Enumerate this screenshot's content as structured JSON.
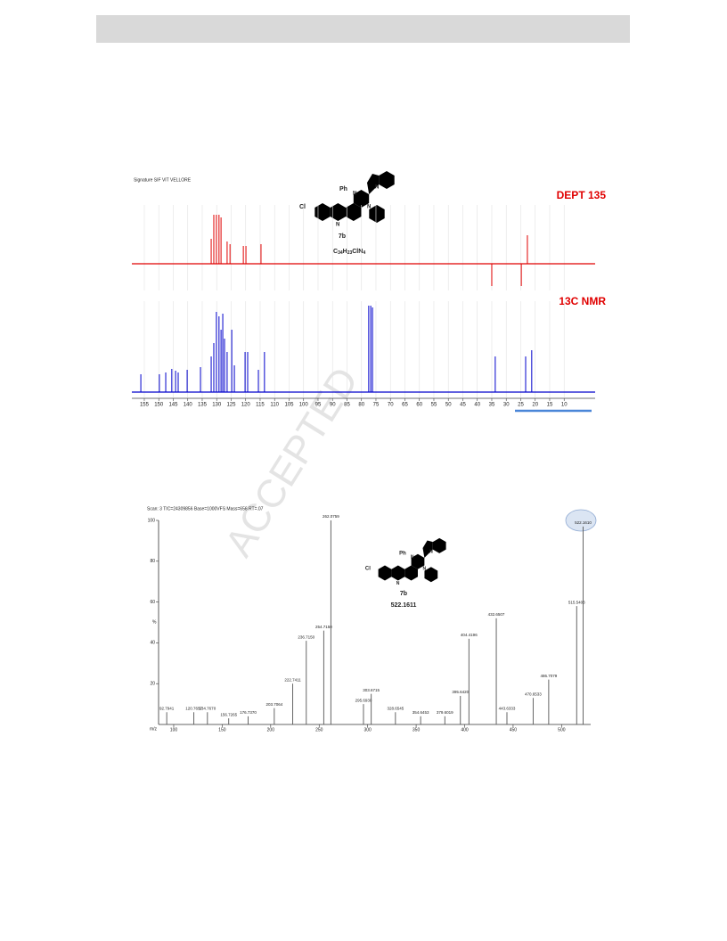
{
  "watermark": "ACCEPTED",
  "nmr_header": "Signature SIF VIT VELLORE",
  "structure": {
    "cl": "Cl",
    "ph": "Ph",
    "n": "N"
  },
  "nmr_compound": {
    "label": "7b",
    "formula": [
      "C",
      "34",
      "H",
      "23",
      "ClN",
      "4"
    ]
  },
  "ms_compound": {
    "label": "7b",
    "mass": "522.1611"
  },
  "chart_data": [
    {
      "type": "spectrum",
      "title": "DEPT 135",
      "color": "#e00000",
      "x": [
        131.9,
        131.0,
        130.1,
        129.2,
        128.5,
        126.4,
        125.4,
        120.8,
        119.9,
        114.7,
        35.0,
        24.8,
        22.7
      ],
      "values": [
        28,
        55,
        55,
        55,
        52,
        25,
        22,
        20,
        20,
        22,
        -25,
        -25,
        32
      ],
      "xlim": [
        159.3,
        -0.7
      ],
      "ylim": [
        -30,
        66
      ],
      "grid": true
    },
    {
      "type": "spectrum",
      "title": "13C NMR",
      "color": "#0000cc",
      "x": [
        156.2,
        149.8,
        147.6,
        145.5,
        144.2,
        143.3,
        140.2,
        135.6,
        131.9,
        131.0,
        130.1,
        129.2,
        128.5,
        127.9,
        127.3,
        126.4,
        124.8,
        123.9,
        120.2,
        119.3,
        115.6,
        113.5,
        77.5,
        76.8,
        76.2,
        33.8,
        23.3,
        21.2
      ],
      "values": [
        20,
        20,
        22,
        26,
        24,
        22,
        25,
        28,
        40,
        55,
        90,
        85,
        70,
        88,
        60,
        45,
        70,
        30,
        45,
        45,
        25,
        45,
        97,
        97,
        95,
        40,
        40,
        47
      ],
      "xlim": [
        159.3,
        -0.7
      ],
      "ylim": [
        -6,
        102
      ],
      "xticks": [
        155,
        150,
        145,
        140,
        135,
        130,
        125,
        120,
        115,
        110,
        105,
        100,
        95,
        90,
        85,
        80,
        75,
        70,
        65,
        60,
        55,
        50,
        45,
        40,
        35,
        30,
        25,
        20,
        15,
        10
      ],
      "grid": true
    },
    {
      "type": "stem",
      "subtitle": "Scan: 3   TIC=24309856   Base=1000VFS   Mass=656   RT=.07",
      "xlabel": "m/z",
      "ylabel": "%",
      "color": "#555555",
      "x": [
        {
          "value": 92.7941,
          "label": "92.7941"
        },
        {
          "value": 120.7657,
          "label": "120.7657"
        },
        {
          "value": 134.767,
          "label": "134.7670"
        },
        {
          "value": 156.7265,
          "label": "156.7265"
        },
        {
          "value": 176.737,
          "label": "176.7370"
        },
        {
          "value": 203.7064,
          "label": "203.7064"
        },
        {
          "value": 222.7411,
          "label": "222.7411"
        },
        {
          "value": 236.715,
          "label": "236.7150"
        },
        {
          "value": 254.715,
          "label": "254.7150"
        },
        {
          "value": 262.0759,
          "label": "262.0759"
        },
        {
          "value": 295.693,
          "label": "295.6930"
        },
        {
          "value": 303.6715,
          "label": "303.6715"
        },
        {
          "value": 328.6545,
          "label": "328.6545"
        },
        {
          "value": 354.6453,
          "label": "354.6453"
        },
        {
          "value": 379.6019,
          "label": "379.6019"
        },
        {
          "value": 395.642,
          "label": "395.6420"
        },
        {
          "value": 404.4196,
          "label": "404.4196"
        },
        {
          "value": 432.6507,
          "label": "432.6507"
        },
        {
          "value": 443.6333,
          "label": "443.6333"
        },
        {
          "value": 470.6533,
          "label": "470.6533"
        },
        {
          "value": 486.7079,
          "label": "486.7079"
        },
        {
          "value": 515.5403,
          "label": "515.5403"
        },
        {
          "value": 522.161,
          "label": "522.1610"
        }
      ],
      "values": [
        6,
        6,
        6,
        3,
        4,
        8,
        20,
        41,
        46,
        100,
        10,
        15,
        6,
        4,
        4,
        14,
        42,
        52,
        6,
        13,
        22,
        58,
        97
      ],
      "xlim": [
        84.4,
        530
      ],
      "ylim": [
        0,
        100
      ],
      "xticks": [
        100,
        150,
        200,
        250,
        300,
        350,
        400,
        450,
        500
      ],
      "yticks": [
        20,
        40,
        60,
        80,
        100
      ]
    }
  ]
}
